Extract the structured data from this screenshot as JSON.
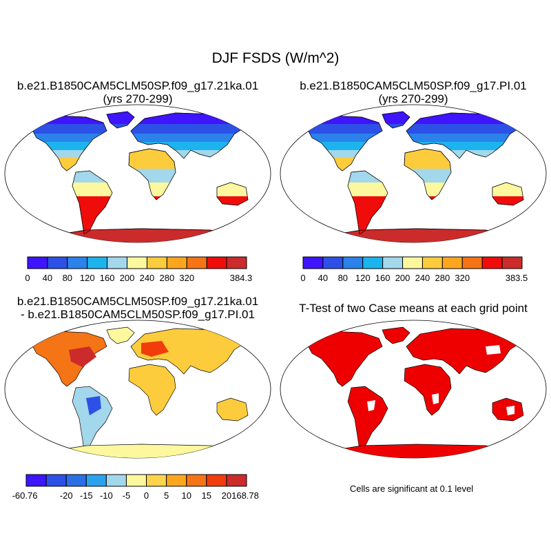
{
  "page": {
    "title": "DJF FSDS (W/m^2)",
    "significance_note": "Cells are significant at 0.1 level"
  },
  "panels": [
    {
      "id": "case1",
      "title_line1": "b.e21.B1850CAM5CLM50SP.f09_g17.21ka.01",
      "title_line2": "(yrs 270-299)",
      "palette": "sequential",
      "colorbar": {
        "colors": [
          "#3f14ff",
          "#2d50e6",
          "#2a82ea",
          "#1cb4ee",
          "#a3d7eb",
          "#fdf89d",
          "#fdcc3c",
          "#fca61f",
          "#f57416",
          "#f10c0c",
          "#cc2b2b"
        ],
        "labels": [
          "0",
          "40",
          "80",
          "120",
          "160",
          "200",
          "240",
          "280",
          "320",
          "384.3"
        ]
      }
    },
    {
      "id": "case2",
      "title_line1": "b.e21.B1850CAM5CLM50SP.f09_g17.PI.01",
      "title_line2": "(yrs 270-299)",
      "palette": "sequential",
      "colorbar": {
        "colors": [
          "#3f14ff",
          "#2d50e6",
          "#2a82ea",
          "#1cb4ee",
          "#a3d7eb",
          "#fdf89d",
          "#fdcc3c",
          "#fca61f",
          "#f57416",
          "#f10c0c",
          "#cc2b2b"
        ],
        "labels": [
          "0",
          "40",
          "80",
          "120",
          "160",
          "200",
          "240",
          "280",
          "320",
          "383.5"
        ]
      }
    },
    {
      "id": "difference",
      "title_line1": "b.e21.B1850CAM5CLM50SP.f09_g17.21ka.01",
      "title_line2": "- b.e21.B1850CAM5CLM50SP.f09_g17.PI.01",
      "palette": "difference",
      "colorbar": {
        "colors": [
          "#3f14ff",
          "#2d50e6",
          "#2a6fe6",
          "#2aa2ee",
          "#a3d7eb",
          "#fdf89d",
          "#fdd44a",
          "#fca61f",
          "#f57416",
          "#f13c0c",
          "#cc2b2b"
        ],
        "labels": [
          "-60.76",
          "-20",
          "-15",
          "-10",
          "-5",
          "0",
          "5",
          "10",
          "15",
          "20",
          "168.78"
        ]
      }
    },
    {
      "id": "ttest",
      "title_line1": "T-Test of two Case means at each grid point",
      "title_line2": "",
      "palette": "significance",
      "significance_color": "#ee0000"
    }
  ]
}
